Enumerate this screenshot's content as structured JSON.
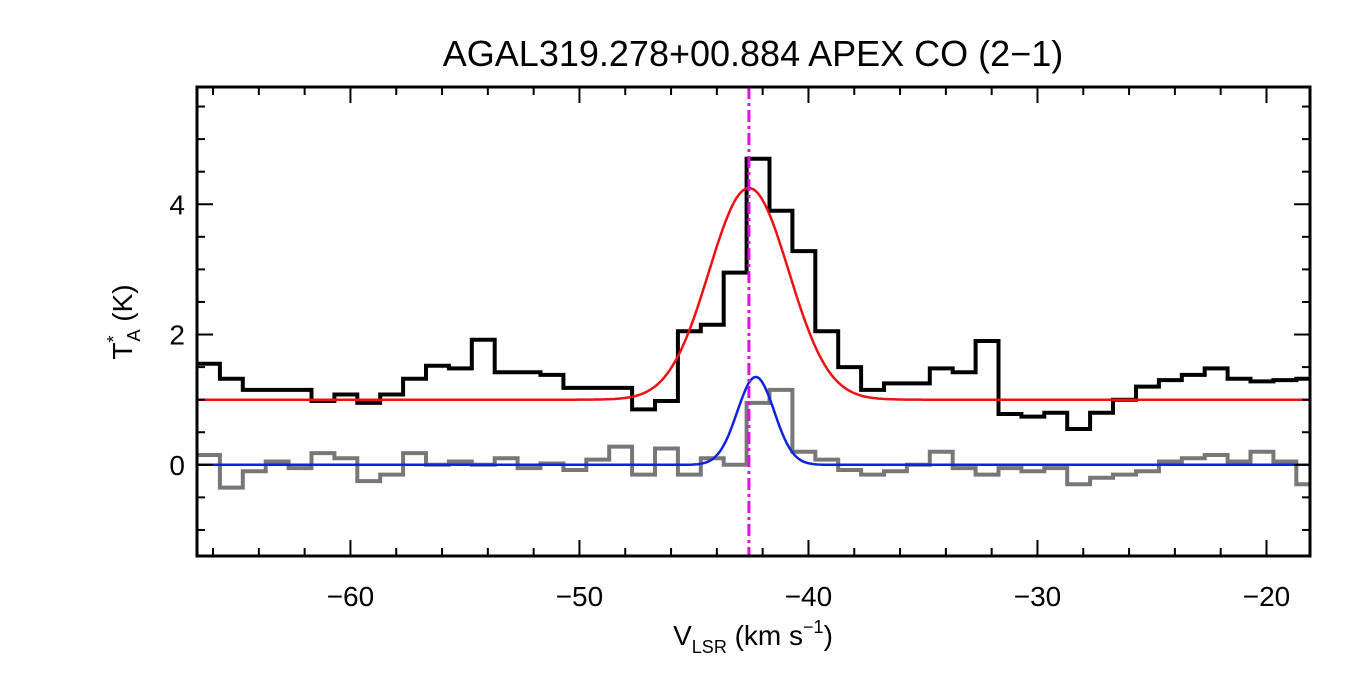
{
  "chart_data": {
    "type": "line",
    "title": "AGAL319.278+00.884  APEX CO (2−1)",
    "xlabel": {
      "main": "V",
      "sub": "LSR",
      "rest": " (km s",
      "sup": "−1",
      "close": ")"
    },
    "ylabel": {
      "main": "T",
      "sup": "*",
      "sub": "A",
      "rest": " (K)"
    },
    "xlim": [
      -66.7,
      -18.1
    ],
    "ylim": [
      -1.4,
      5.8
    ],
    "xticks": [
      -60,
      -50,
      -40,
      -30,
      -20
    ],
    "xtick_labels": [
      "−60",
      "−50",
      "−40",
      "−30",
      "−20"
    ],
    "yticks": [
      0,
      2,
      4
    ],
    "ytick_labels": [
      "0",
      "2",
      "4"
    ],
    "vline_x": -42.6,
    "colors": {
      "spectrum": "#000000",
      "residual": "#777777",
      "fit_upper": "#ee1111",
      "fit_lower": "#1122dd",
      "vline": "#dd11dd"
    },
    "series": [
      {
        "kind": "histogram",
        "x": [
          -66.7,
          -65.7,
          -64.7,
          -63.7,
          -62.7,
          -61.7,
          -60.7,
          -59.7,
          -58.7,
          -57.7,
          -56.7,
          -55.7,
          -54.7,
          -53.7,
          -52.7,
          -51.7,
          -50.7,
          -49.7,
          -48.7,
          -47.7,
          -46.7,
          -45.7,
          -44.7,
          -43.7,
          -42.7,
          -41.7,
          -40.7,
          -39.7,
          -38.7,
          -37.7,
          -36.7,
          -35.7,
          -34.7,
          -33.7,
          -32.7,
          -31.7,
          -30.7,
          -29.7,
          -28.7,
          -27.7,
          -26.7,
          -25.7,
          -24.7,
          -23.7,
          -22.7,
          -21.7,
          -20.7,
          -19.7,
          -18.7
        ],
        "y": [
          1.55,
          1.32,
          1.15,
          1.15,
          1.15,
          0.98,
          1.08,
          0.95,
          1.08,
          1.32,
          1.52,
          1.48,
          1.92,
          1.42,
          1.42,
          1.38,
          1.18,
          1.18,
          1.18,
          0.85,
          0.98,
          2.05,
          2.15,
          2.95,
          4.7,
          3.9,
          3.28,
          2.05,
          1.5,
          1.15,
          1.25,
          1.25,
          1.48,
          1.42,
          1.9,
          0.78,
          0.74,
          0.8,
          0.55,
          0.8,
          1.0,
          1.2,
          1.3,
          1.38,
          1.48,
          1.32,
          1.28,
          1.3,
          1.32
        ]
      },
      {
        "kind": "histogram",
        "x": [
          -66.7,
          -65.7,
          -64.7,
          -63.7,
          -62.7,
          -61.7,
          -60.7,
          -59.7,
          -58.7,
          -57.7,
          -56.7,
          -55.7,
          -54.7,
          -53.7,
          -52.7,
          -51.7,
          -50.7,
          -49.7,
          -48.7,
          -47.7,
          -46.7,
          -45.7,
          -44.7,
          -43.7,
          -42.7,
          -41.7,
          -40.7,
          -39.7,
          -38.7,
          -37.7,
          -36.7,
          -35.7,
          -34.7,
          -33.7,
          -32.7,
          -31.7,
          -30.7,
          -29.7,
          -28.7,
          -27.7,
          -26.7,
          -25.7,
          -24.7,
          -23.7,
          -22.7,
          -21.7,
          -20.7,
          -19.7,
          -18.7
        ],
        "y": [
          0.15,
          -0.35,
          -0.1,
          0.05,
          -0.05,
          0.18,
          0.1,
          -0.25,
          -0.15,
          0.18,
          0.0,
          0.05,
          0.0,
          0.1,
          -0.05,
          0.02,
          -0.08,
          0.08,
          0.28,
          -0.15,
          0.25,
          -0.15,
          0.1,
          0.0,
          0.95,
          1.15,
          0.2,
          0.08,
          -0.08,
          -0.15,
          -0.1,
          0.0,
          0.2,
          -0.05,
          -0.15,
          -0.05,
          -0.1,
          -0.05,
          -0.3,
          -0.2,
          -0.15,
          -0.1,
          0.05,
          0.1,
          0.15,
          0.05,
          0.2,
          0.05,
          -0.3
        ]
      },
      {
        "kind": "gaussian",
        "baseline": 1.0,
        "amplitude": 3.25,
        "center": -42.6,
        "fwhm": 4.1
      },
      {
        "kind": "gaussian",
        "baseline": 0.0,
        "amplitude": 1.35,
        "center": -42.3,
        "fwhm": 1.9
      }
    ]
  }
}
